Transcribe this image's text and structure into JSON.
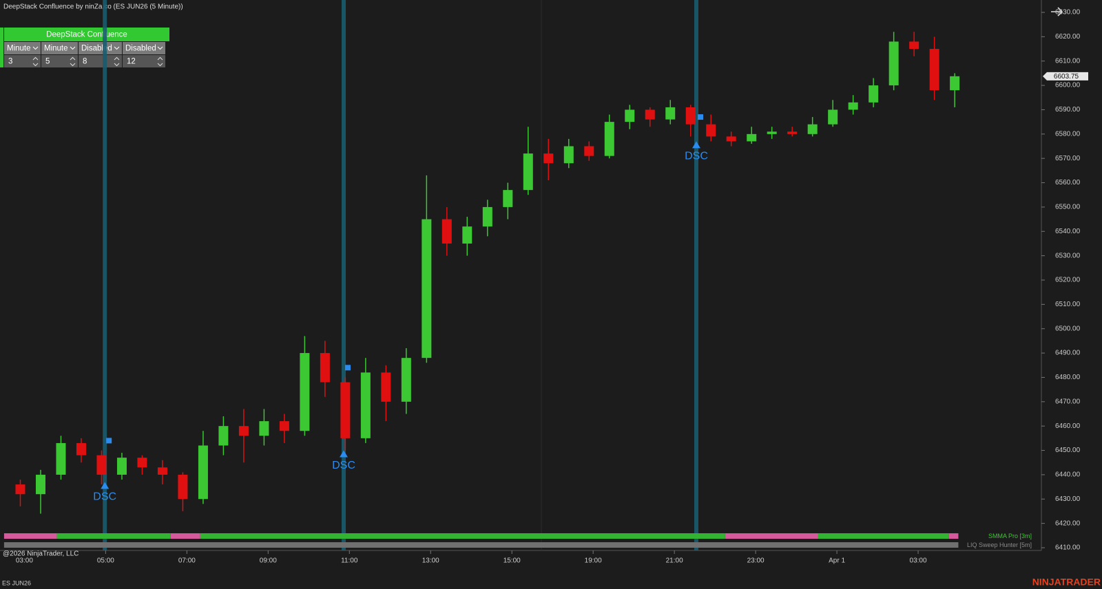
{
  "header": {
    "title": "DeepStack Confluence by ninZa.co (ES JUN26 (5 Minute))"
  },
  "panel": {
    "title": "DeepStack Confluence",
    "dropdowns": [
      "Minute",
      "Minute",
      "Disabled",
      "Disabled"
    ],
    "inputs": [
      3,
      5,
      8,
      12
    ]
  },
  "chart_data": {
    "type": "candlestick",
    "x": [
      2.9,
      3.4,
      3.9,
      4.4,
      4.9,
      5.4,
      5.9,
      6.4,
      6.9,
      7.4,
      7.9,
      8.4,
      8.9,
      9.4,
      9.9,
      10.4,
      10.9,
      11.4,
      11.9,
      12.4,
      12.9,
      13.4,
      13.9,
      14.4,
      14.9,
      15.4,
      15.9,
      16.4,
      16.9,
      17.4,
      17.9,
      18.4,
      18.9,
      19.4,
      19.9,
      20.4,
      20.9,
      21.4,
      21.9,
      22.4,
      22.9,
      23.4,
      23.9,
      24.4,
      24.9,
      25.4,
      25.9
    ],
    "open": [
      6436,
      6432,
      6440,
      6453,
      6448,
      6440,
      6447,
      6443,
      6440,
      6430,
      6452,
      6460,
      6456,
      6462,
      6458,
      6490,
      6478,
      6455,
      6482,
      6470,
      6488,
      6545,
      6535,
      6542,
      6550,
      6557,
      6572,
      6568,
      6575,
      6571,
      6585,
      6590,
      6586,
      6591,
      6584,
      6579,
      6577,
      6580,
      6581,
      6580,
      6584,
      6590,
      6593,
      6600,
      6618,
      6615,
      6598
    ],
    "high": [
      6438,
      6442,
      6456,
      6455,
      6450,
      6449,
      6448,
      6446,
      6441,
      6458,
      6464,
      6467,
      6467,
      6465,
      6497,
      6495,
      6480,
      6488,
      6485,
      6492,
      6563,
      6550,
      6546,
      6553,
      6560,
      6583,
      6578,
      6578,
      6577,
      6588,
      6592,
      6591,
      6594,
      6592,
      6588,
      6581,
      6583,
      6583,
      6583,
      6587,
      6594,
      6596,
      6603,
      6622,
      6622,
      6620,
      6605
    ],
    "low": [
      6427,
      6424,
      6438,
      6445,
      6436,
      6438,
      6440,
      6436,
      6425,
      6428,
      6448,
      6445,
      6452,
      6453,
      6456,
      6472,
      6450,
      6453,
      6462,
      6465,
      6486,
      6530,
      6530,
      6538,
      6545,
      6555,
      6561,
      6566,
      6569,
      6570,
      6582,
      6583,
      6584,
      6579,
      6577,
      6575,
      6576,
      6578,
      6579,
      6579,
      6583,
      6588,
      6591,
      6598,
      6612,
      6594,
      6591
    ],
    "close": [
      6432,
      6440,
      6453,
      6448,
      6440,
      6447,
      6443,
      6440,
      6430,
      6452,
      6460,
      6456,
      6462,
      6458,
      6490,
      6478,
      6455,
      6482,
      6470,
      6488,
      6545,
      6535,
      6542,
      6550,
      6557,
      6572,
      6568,
      6575,
      6571,
      6585,
      6590,
      6586,
      6591,
      6584,
      6579,
      6577,
      6580,
      6581,
      6580,
      6584,
      6590,
      6593,
      6600,
      6618,
      6615,
      6598,
      6603.75
    ],
    "up_color": "#3cc832",
    "down_color": "#e01010",
    "xlim": [
      2.4,
      28
    ],
    "xticks": [
      {
        "value": 3,
        "label": "03:00"
      },
      {
        "value": 5,
        "label": "05:00"
      },
      {
        "value": 7,
        "label": "07:00"
      },
      {
        "value": 9,
        "label": "09:00"
      },
      {
        "value": 11,
        "label": "11:00"
      },
      {
        "value": 13,
        "label": "13:00"
      },
      {
        "value": 15,
        "label": "15:00"
      },
      {
        "value": 17,
        "label": "19:00"
      },
      {
        "value": 19,
        "label": "21:00"
      },
      {
        "value": 21,
        "label": "23:00"
      },
      {
        "value": 23,
        "label": "Apr 1"
      },
      {
        "value": 25,
        "label": "03:00"
      }
    ],
    "ylim": [
      6410,
      6630
    ],
    "yticks": [
      {
        "value": 6410,
        "label": "6410.00"
      },
      {
        "value": 6420,
        "label": "6420.00"
      },
      {
        "value": 6430,
        "label": "6430.00"
      },
      {
        "value": 6440,
        "label": "6440.00"
      },
      {
        "value": 6450,
        "label": "6450.00"
      },
      {
        "value": 6460,
        "label": "6460.00"
      },
      {
        "value": 6470,
        "label": "6470.00"
      },
      {
        "value": 6480,
        "label": "6480.00"
      },
      {
        "value": 6490,
        "label": "6490.00"
      },
      {
        "value": 6500,
        "label": "6500.00"
      },
      {
        "value": 6510,
        "label": "6510.00"
      },
      {
        "value": 6520,
        "label": "6520.00"
      },
      {
        "value": 6530,
        "label": "6530.00"
      },
      {
        "value": 6540,
        "label": "6540.00"
      },
      {
        "value": 6550,
        "label": "6550.00"
      },
      {
        "value": 6560,
        "label": "6560.00"
      },
      {
        "value": 6570,
        "label": "6570.00"
      },
      {
        "value": 6580,
        "label": "6580.00"
      },
      {
        "value": 6590,
        "label": "6590.00"
      },
      {
        "value": 6600,
        "label": "6600.00"
      },
      {
        "value": 6610,
        "label": "6610.00"
      },
      {
        "value": 6620,
        "label": "6620.00"
      },
      {
        "value": 6630,
        "label": "6630.00"
      }
    ],
    "signals": {
      "label": "DSC",
      "color": "#2a8cf0",
      "line_color": "#1b5c6e",
      "x": [
        4.98,
        10.86,
        19.54
      ],
      "arrow": [
        6437,
        6450,
        6577
      ],
      "square": [
        6454,
        6484,
        6587
      ]
    },
    "bands": [
      {
        "name": "SMMA Pro [3m]",
        "label_color": "#3cc832",
        "segments": [
          {
            "start": 2.5,
            "end": 3.8,
            "color": "#d45a9c"
          },
          {
            "start": 3.8,
            "end": 6.6,
            "color": "#32b432"
          },
          {
            "start": 6.6,
            "end": 7.33,
            "color": "#d45a9c"
          },
          {
            "start": 7.33,
            "end": 20.25,
            "color": "#32b432"
          },
          {
            "start": 20.25,
            "end": 22.54,
            "color": "#d45a9c"
          },
          {
            "start": 22.54,
            "end": 25.75,
            "color": "#32b432"
          },
          {
            "start": 25.75,
            "end": 25.99,
            "color": "#d45a9c"
          }
        ]
      },
      {
        "name": "LIQ Sweep Hunter [5m]",
        "label_color": "#8a8a8a",
        "segments": [
          {
            "start": 2.5,
            "end": 25.99,
            "color": "#707070"
          }
        ]
      }
    ]
  },
  "footer": {
    "copyright": "@2026 NinjaTrader, LLC",
    "instrument": "ES JUN26",
    "logo": "NINJATRADER"
  }
}
